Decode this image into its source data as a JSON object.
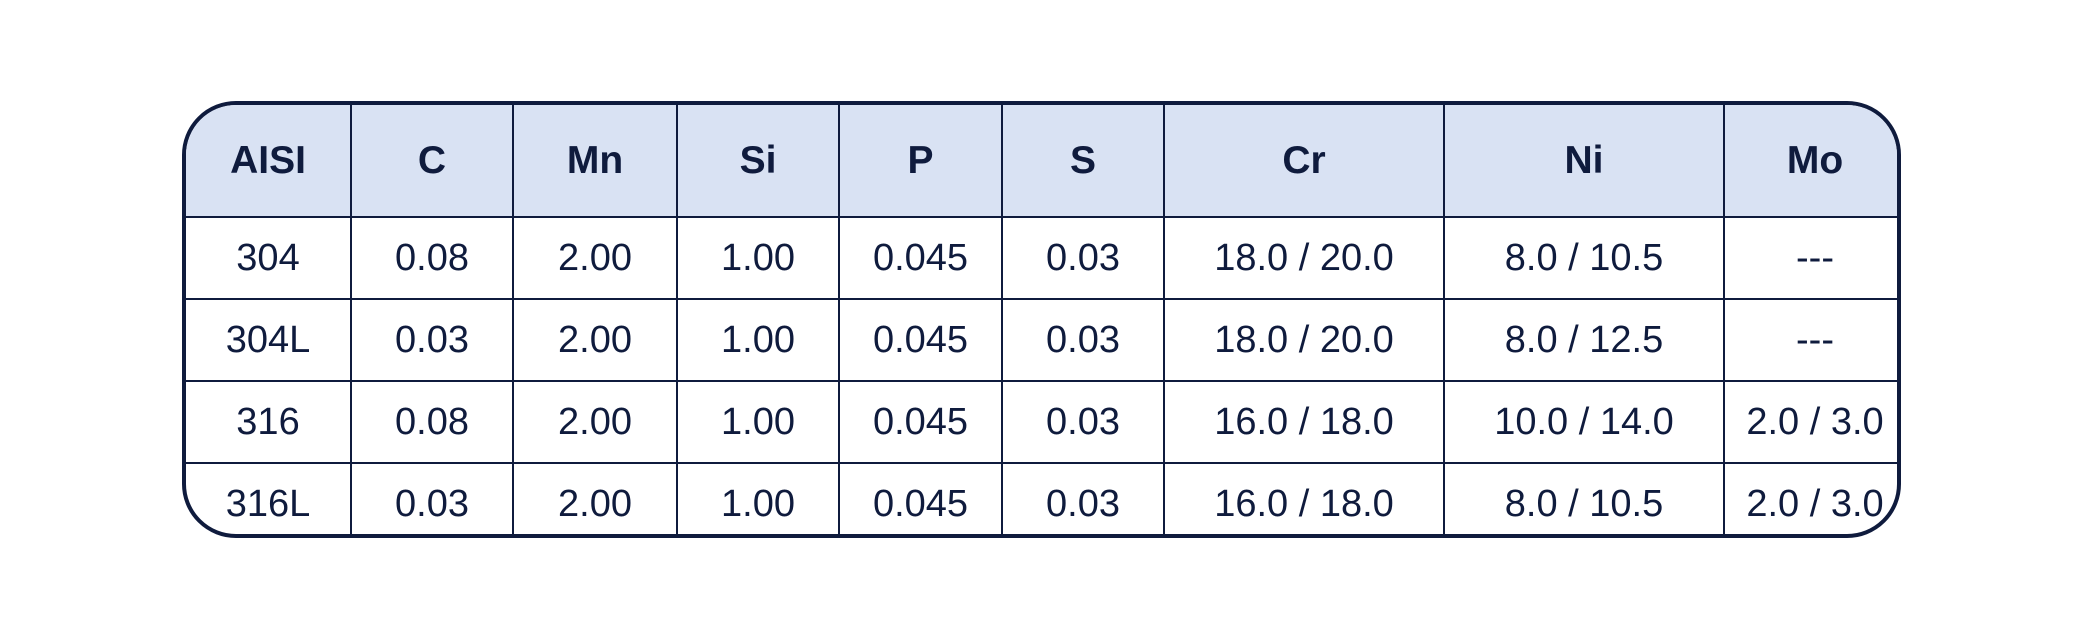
{
  "table": {
    "header": [
      "AISI",
      "C",
      "Mn",
      "Si",
      "P",
      "S",
      "Cr",
      "Ni",
      "Mo"
    ],
    "rows": [
      [
        "304",
        "0.08",
        "2.00",
        "1.00",
        "0.045",
        "0.03",
        "18.0 / 20.0",
        "8.0 / 10.5",
        "---"
      ],
      [
        "304L",
        "0.03",
        "2.00",
        "1.00",
        "0.045",
        "0.03",
        "18.0 / 20.0",
        "8.0 / 12.5",
        "---"
      ],
      [
        "316",
        "0.08",
        "2.00",
        "1.00",
        "0.045",
        "0.03",
        "16.0 / 18.0",
        "10.0 / 14.0",
        "2.0 / 3.0"
      ],
      [
        "316L",
        "0.03",
        "2.00",
        "1.00",
        "0.045",
        "0.03",
        "16.0 / 18.0",
        "8.0 / 10.5",
        "2.0 / 3.0"
      ]
    ]
  }
}
